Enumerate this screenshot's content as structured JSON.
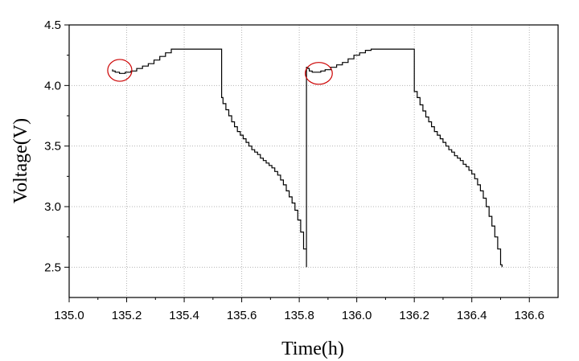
{
  "chart_data": {
    "type": "line",
    "title": "",
    "xlabel": "Time(h)",
    "ylabel": "Voltage(V)",
    "xlim": [
      135.0,
      136.7
    ],
    "ylim": [
      2.25,
      4.5
    ],
    "grid": true,
    "xticks": [
      135.0,
      135.2,
      135.4,
      135.6,
      135.8,
      136.0,
      136.2,
      136.4,
      136.6
    ],
    "xtick_labels": [
      "135.0",
      "135.2",
      "135.4",
      "135.6",
      "135.8",
      "136.0",
      "136.2",
      "136.4",
      "136.6"
    ],
    "yticks": [
      2.5,
      3.0,
      3.5,
      4.0,
      4.5
    ],
    "ytick_labels": [
      "2.5",
      "3.0",
      "3.5",
      "4.0",
      "4.5"
    ],
    "series": [
      {
        "color": "#000000",
        "x": [
          135.15,
          135.151,
          135.16,
          135.175,
          135.195,
          135.215,
          135.235,
          135.255,
          135.275,
          135.295,
          135.315,
          135.335,
          135.355,
          135.37,
          135.53,
          135.53,
          135.535,
          135.545,
          135.555,
          135.565,
          135.575,
          135.585,
          135.595,
          135.605,
          135.615,
          135.625,
          135.635,
          135.645,
          135.655,
          135.665,
          135.675,
          135.685,
          135.695,
          135.705,
          135.715,
          135.725,
          135.735,
          135.745,
          135.755,
          135.765,
          135.775,
          135.785,
          135.795,
          135.805,
          135.815,
          135.825,
          135.825,
          135.83,
          135.83,
          135.835,
          135.845,
          135.86,
          135.875,
          135.89,
          135.91,
          135.93,
          135.95,
          135.97,
          135.99,
          136.01,
          136.03,
          136.05,
          136.2,
          136.2,
          136.21,
          136.22,
          136.23,
          136.24,
          136.25,
          136.26,
          136.27,
          136.28,
          136.29,
          136.3,
          136.31,
          136.32,
          136.33,
          136.34,
          136.35,
          136.36,
          136.37,
          136.38,
          136.39,
          136.4,
          136.41,
          136.42,
          136.43,
          136.44,
          136.45,
          136.46,
          136.47,
          136.48,
          136.49,
          136.5,
          136.505
        ],
        "y": [
          4.13,
          4.12,
          4.11,
          4.1,
          4.11,
          4.12,
          4.14,
          4.16,
          4.18,
          4.21,
          4.24,
          4.27,
          4.3,
          4.3,
          4.3,
          3.9,
          3.85,
          3.8,
          3.75,
          3.7,
          3.66,
          3.62,
          3.59,
          3.56,
          3.53,
          3.5,
          3.47,
          3.45,
          3.43,
          3.4,
          3.38,
          3.36,
          3.34,
          3.32,
          3.29,
          3.26,
          3.22,
          3.18,
          3.13,
          3.08,
          3.03,
          2.97,
          2.89,
          2.79,
          2.65,
          2.5,
          4.15,
          4.15,
          4.14,
          4.12,
          4.11,
          4.11,
          4.12,
          4.13,
          4.15,
          4.17,
          4.19,
          4.22,
          4.25,
          4.27,
          4.29,
          4.3,
          4.3,
          3.95,
          3.9,
          3.84,
          3.79,
          3.74,
          3.7,
          3.66,
          3.62,
          3.59,
          3.56,
          3.53,
          3.5,
          3.47,
          3.45,
          3.42,
          3.4,
          3.38,
          3.35,
          3.33,
          3.3,
          3.27,
          3.23,
          3.18,
          3.13,
          3.07,
          3.0,
          2.92,
          2.84,
          2.75,
          2.65,
          2.52,
          2.5
        ]
      }
    ],
    "annotations": [
      {
        "shape": "ellipse",
        "color": "#cc0000",
        "cx": 135.176,
        "cy": 4.125,
        "rx": 0.042,
        "ry": 0.09
      },
      {
        "shape": "ellipse",
        "color": "#cc0000",
        "cx": 135.868,
        "cy": 4.1,
        "rx": 0.047,
        "ry": 0.09
      }
    ]
  }
}
